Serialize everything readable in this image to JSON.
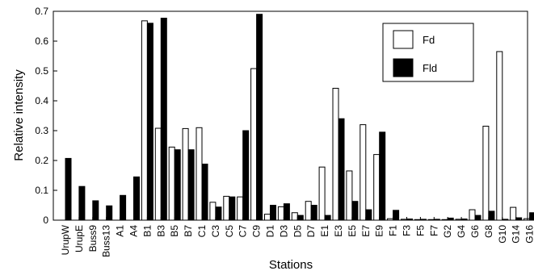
{
  "chart_data": {
    "type": "bar",
    "xlabel": "Stations",
    "ylabel": "Relative intensity",
    "ylim": [
      0,
      0.7
    ],
    "yticks": [
      0,
      0.1,
      0.2,
      0.3,
      0.4,
      0.5,
      0.6,
      0.7
    ],
    "ytick_labels": [
      "0",
      "0.1",
      "0.2",
      "0.3",
      "0.4",
      "0.5",
      "0.6",
      "0.7"
    ],
    "grid": false,
    "legend_position": "top-right",
    "categories": [
      "UrupW",
      "UrupE",
      "Buss9",
      "Buss13",
      "A1",
      "A4",
      "B1",
      "B3",
      "B5",
      "B7",
      "C1",
      "C3",
      "C5",
      "C7",
      "C9",
      "D1",
      "D3",
      "D5",
      "D7",
      "E1",
      "E3",
      "E5",
      "E7",
      "E9",
      "F1",
      "F3",
      "F5",
      "F7",
      "G2",
      "G4",
      "G6",
      "G8",
      "G10",
      "G14",
      "G16"
    ],
    "series": [
      {
        "name": "Fd",
        "color": "#ffffff",
        "values": [
          0,
          0,
          0,
          0,
          0,
          0,
          0.668,
          0.308,
          0.245,
          0.307,
          0.31,
          0.06,
          0.08,
          0.078,
          0.508,
          0.02,
          0.045,
          0.025,
          0.063,
          0.178,
          0.442,
          0.165,
          0.32,
          0.22,
          0.005,
          0.003,
          0.002,
          0.002,
          0.002,
          0.003,
          0.035,
          0.315,
          0.565,
          0.043,
          0.005
        ]
      },
      {
        "name": "Fld",
        "color": "#000000",
        "values": [
          0.207,
          0.113,
          0.065,
          0.048,
          0.083,
          0.145,
          0.66,
          0.677,
          0.236,
          0.236,
          0.188,
          0.044,
          0.078,
          0.3,
          0.69,
          0.05,
          0.055,
          0.016,
          0.05,
          0.016,
          0.34,
          0.063,
          0.035,
          0.295,
          0.033,
          0.004,
          0.003,
          0.003,
          0.007,
          0.004,
          0.016,
          0.03,
          0.003,
          0.008,
          0.025
        ]
      }
    ]
  }
}
